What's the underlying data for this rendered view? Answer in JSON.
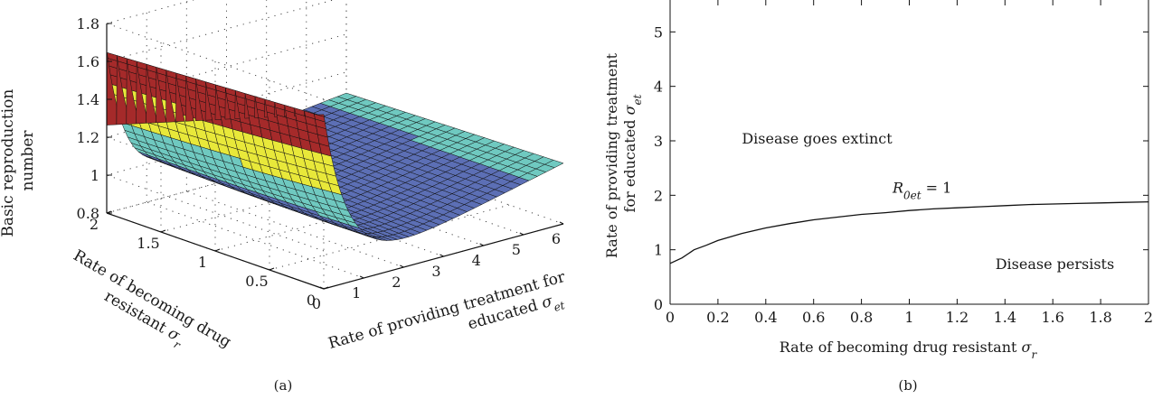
{
  "chart_data": [
    {
      "panel": "(a)",
      "type": "surface",
      "zlabel": "Basic reproduction number",
      "xlabel": "Rate of providing treatment for educated σet",
      "ylabel": "Rate of becoming drug resistant σr",
      "x_ticks": [
        "0",
        "1",
        "2",
        "3",
        "4",
        "5",
        "6"
      ],
      "y_ticks": [
        "0",
        "0.5",
        "1",
        "1.5",
        "2"
      ],
      "z_ticks": [
        "0.8",
        "1",
        "1.2",
        "1.4",
        "1.6",
        "1.8"
      ],
      "xlim": [
        0,
        6
      ],
      "ylim": [
        0,
        2
      ],
      "zlim": [
        0.8,
        1.8
      ],
      "grid": true,
      "colors": [
        "#3a3f8f",
        "#5c6fb5",
        "#6fc9c0",
        "#e8e83a",
        "#a52a2a"
      ],
      "notes_values": {
        "max_R0": 1.72,
        "min_R0": 0.82
      }
    },
    {
      "panel": "(b)",
      "type": "line",
      "xlabel": "Rate of becoming drug resistant σr",
      "ylabel": "Rate of providing treatment for educated σet",
      "x_ticks": [
        "0",
        "0.2",
        "0.4",
        "0.6",
        "0.8",
        "1",
        "1.2",
        "1.4",
        "1.6",
        "1.8",
        "2"
      ],
      "y_ticks": [
        "0",
        "1",
        "2",
        "3",
        "4",
        "5"
      ],
      "xlim": [
        0,
        2
      ],
      "ylim": [
        0,
        6
      ],
      "series": [
        {
          "x": [
            0,
            0.05,
            0.1,
            0.15,
            0.2,
            0.3,
            0.4,
            0.5,
            0.6,
            0.7,
            0.8,
            0.9,
            1.0,
            1.1,
            1.2,
            1.3,
            1.4,
            1.5,
            1.6,
            1.7,
            1.8,
            1.9,
            2.0
          ],
          "y": [
            0.75,
            0.85,
            1.0,
            1.08,
            1.17,
            1.3,
            1.4,
            1.48,
            1.55,
            1.6,
            1.65,
            1.68,
            1.72,
            1.75,
            1.77,
            1.79,
            1.81,
            1.83,
            1.84,
            1.85,
            1.86,
            1.87,
            1.88
          ]
        }
      ],
      "annotations": [
        {
          "text": "Disease goes extinct",
          "x": 0.3,
          "y": 2.95
        },
        {
          "text": "Disease persists",
          "x": 1.36,
          "y": 0.65
        },
        {
          "text_main": "R",
          "text_sub": "0et",
          "text_rest": " = 1",
          "x": 0.93,
          "y": 2.05
        }
      ]
    }
  ],
  "captions": {
    "a": "(a)",
    "b": "(b)"
  }
}
